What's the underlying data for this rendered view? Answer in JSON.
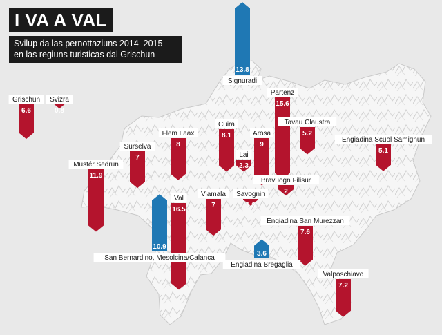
{
  "title": "I VA A VAL",
  "subtitle_lines": [
    "Svilup da las pernottaziuns 2014–2015",
    "en las regiuns turisticas dal Grischun"
  ],
  "colors": {
    "decrease": "#b4142d",
    "increase": "#1f78b4",
    "map": "#f4f4f4",
    "background": "#e9e9e9"
  },
  "chart_data": {
    "type": "bar",
    "value_labels": "absolute percent change",
    "series": [
      {
        "region": "Grischun",
        "value": -6.6,
        "display": "6.6"
      },
      {
        "region": "Svizra",
        "value": -0.8,
        "display": "0.8"
      },
      {
        "region": "Signuradi",
        "value": 13.8,
        "display": "13.8"
      },
      {
        "region": "Partenz",
        "value": -15.6,
        "display": "15.6"
      },
      {
        "region": "Tavau Claustra",
        "value": -5.2,
        "display": "5.2"
      },
      {
        "region": "Cuira",
        "value": -8.1,
        "display": "8.1"
      },
      {
        "region": "Arosa",
        "value": -9,
        "display": "9"
      },
      {
        "region": "Flem Laax",
        "value": -8,
        "display": "8"
      },
      {
        "region": "Surselva",
        "value": -7,
        "display": "7"
      },
      {
        "region": "Lai",
        "value": -2.3,
        "display": "2.3"
      },
      {
        "region": "Engiadina Scuol Samignun",
        "value": -5.1,
        "display": "5.1"
      },
      {
        "region": "Mustér Sedrun",
        "value": -11.9,
        "display": "11.9"
      },
      {
        "region": "Bravuogn Filisur",
        "value": -2,
        "display": "2"
      },
      {
        "region": "Val",
        "value": -16.5,
        "display": "16.5"
      },
      {
        "region": "Viamala",
        "value": -7,
        "display": "7"
      },
      {
        "region": "Savognin",
        "value": -1.3,
        "display": "1.3"
      },
      {
        "region": "Engiadina San Murezzan",
        "value": -7.6,
        "display": "7.6"
      },
      {
        "region": "San Bernardino, Mesolcina/Calanca",
        "value": 10.9,
        "display": "10.9"
      },
      {
        "region": "Engiadina Bregaglia",
        "value": 3.6,
        "display": "3.6"
      },
      {
        "region": "Valposchiavo",
        "value": -7.2,
        "display": "7.2"
      }
    ]
  }
}
